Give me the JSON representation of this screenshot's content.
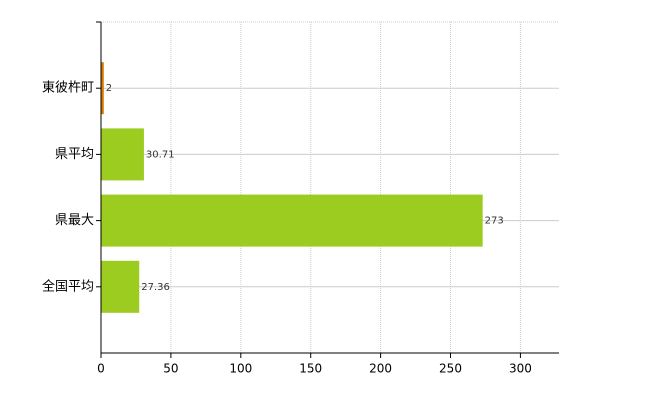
{
  "chart_data": {
    "type": "hbar",
    "categories": [
      "東彼杵町",
      "県平均",
      "県最大",
      "全国平均"
    ],
    "values": [
      2,
      30.71,
      273,
      27.36
    ],
    "colors": [
      "#e07800",
      "#9ccc20",
      "#9ccc20",
      "#9ccc20"
    ],
    "xlim": [
      0,
      327.6
    ],
    "xticks": [
      0,
      50,
      100,
      150,
      200,
      250,
      300
    ],
    "grid": true
  }
}
